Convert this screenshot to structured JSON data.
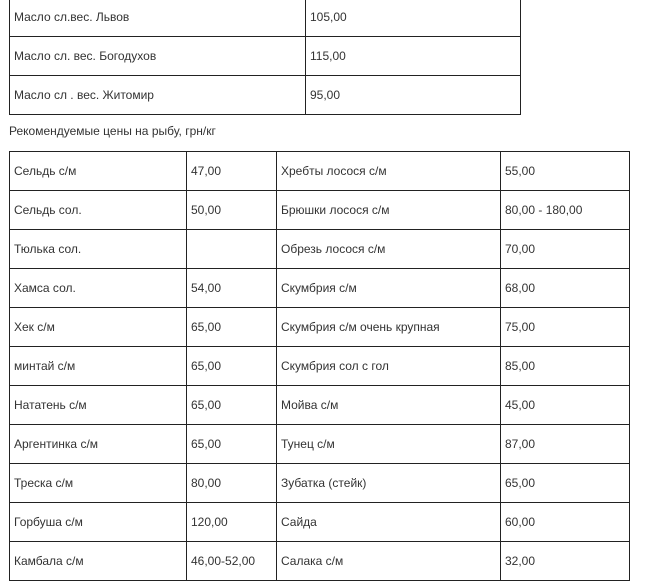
{
  "oil_table": {
    "rows": [
      {
        "name": "Масло сл.вес. Львов",
        "price": "105,00"
      },
      {
        "name": "Масло сл. вес. Богодухов",
        "price": "115,00"
      },
      {
        "name": "Масло сл . вес. Житомир",
        "price": "95,00"
      }
    ]
  },
  "fish_caption": "Рекомендуемые цены на рыбу, грн/кг",
  "fish_table": {
    "rows": [
      {
        "name1": "Сельдь с/м",
        "price1": "47,00",
        "name2": "Хребты лосося с/м",
        "price2": "55,00"
      },
      {
        "name1": "Сельдь сол.",
        "price1": "50,00",
        "name2": "Брюшки лосося с/м",
        "price2": "80,00 - 180,00"
      },
      {
        "name1": "Тюлька сол.",
        "price1": "",
        "name2": "Обрезь лосося с/м",
        "price2": "70,00"
      },
      {
        "name1": "Хамса сол.",
        "price1": "54,00",
        "name2": "Скумбрия с/м",
        "price2": "68,00"
      },
      {
        "name1": "Хек с/м",
        "price1": "65,00",
        "name2": "Скумбрия с/м очень крупная",
        "price2": "75,00"
      },
      {
        "name1": "минтай с/м",
        "price1": "65,00",
        "name2": "Скумбрия сол с гол",
        "price2": "85,00"
      },
      {
        "name1": "Нататень с/м",
        "price1": "65,00",
        "name2": "Мойва с/м",
        "price2": "45,00"
      },
      {
        "name1": "Аргентинка с/м",
        "price1": "65,00",
        "name2": "Тунец с/м",
        "price2": "87,00"
      },
      {
        "name1": "Треска с/м",
        "price1": "80,00",
        "name2": "Зубатка (стейк)",
        "price2": "65,00"
      },
      {
        "name1": "Горбуша с/м",
        "price1": "120,00",
        "name2": "Сайда",
        "price2": "60,00"
      },
      {
        "name1": "Камбала с/м",
        "price1": "46,00-52,00",
        "name2": "Салака с/м",
        "price2": "32,00"
      }
    ]
  }
}
